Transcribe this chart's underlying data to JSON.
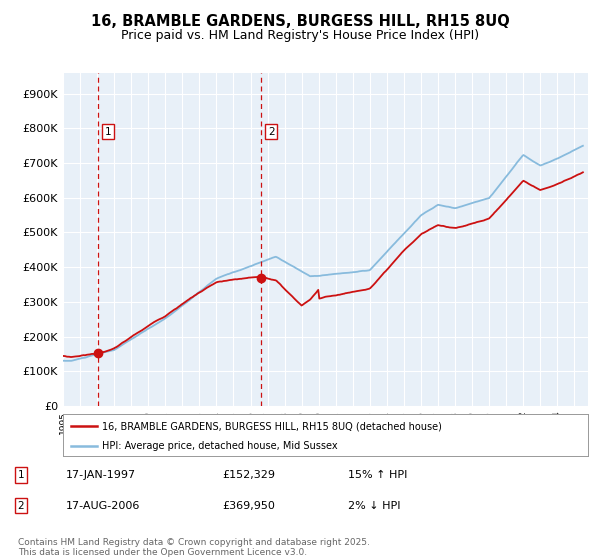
{
  "title": "16, BRAMBLE GARDENS, BURGESS HILL, RH15 8UQ",
  "subtitle": "Price paid vs. HM Land Registry's House Price Index (HPI)",
  "title_fontsize": 10.5,
  "subtitle_fontsize": 9,
  "plot_bg_color": "#e8f0f8",
  "grid_color": "#ffffff",
  "ylim": [
    0,
    960000
  ],
  "yticks": [
    0,
    100000,
    200000,
    300000,
    400000,
    500000,
    600000,
    700000,
    800000,
    900000
  ],
  "ytick_labels": [
    "£0",
    "£100K",
    "£200K",
    "£300K",
    "£400K",
    "£500K",
    "£600K",
    "£700K",
    "£800K",
    "£900K"
  ],
  "year_start": 1995,
  "year_end": 2025,
  "sale1_year": 1997.04,
  "sale1_price": 152329,
  "sale1_label": "1",
  "sale2_year": 2006.63,
  "sale2_price": 369950,
  "sale2_label": "2",
  "line1_color": "#cc1111",
  "line2_color": "#88bbdd",
  "sale_dot_color": "#cc1111",
  "dashed_line_color": "#cc1111",
  "legend1_label": "16, BRAMBLE GARDENS, BURGESS HILL, RH15 8UQ (detached house)",
  "legend2_label": "HPI: Average price, detached house, Mid Sussex",
  "footnote": "Contains HM Land Registry data © Crown copyright and database right 2025.\nThis data is licensed under the Open Government Licence v3.0.",
  "footnote_fontsize": 6.5,
  "ann1_date": "17-JAN-1997",
  "ann1_price": "£152,329",
  "ann1_hpi": "15% ↑ HPI",
  "ann2_date": "17-AUG-2006",
  "ann2_price": "£369,950",
  "ann2_hpi": "2% ↓ HPI"
}
